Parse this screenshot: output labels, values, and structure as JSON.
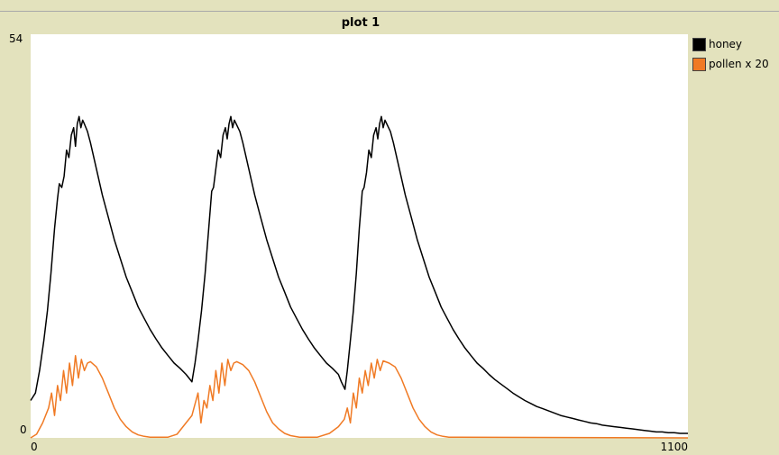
{
  "chart_data": {
    "type": "line",
    "title": "plot 1",
    "xlabel": "",
    "ylabel": "",
    "xlim": [
      0,
      1100
    ],
    "ylim": [
      0,
      54
    ],
    "x_tick_labels": [
      "0",
      "1100"
    ],
    "y_tick_labels": [
      "0",
      "54"
    ],
    "grid": false,
    "legend_position": "right",
    "series": [
      {
        "name": "honey",
        "color": "#000000",
        "points": [
          [
            0,
            5
          ],
          [
            8,
            6
          ],
          [
            15,
            9
          ],
          [
            22,
            13
          ],
          [
            28,
            17
          ],
          [
            34,
            22
          ],
          [
            40,
            28
          ],
          [
            45,
            32
          ],
          [
            48,
            34
          ],
          [
            52,
            33.5
          ],
          [
            56,
            35
          ],
          [
            60,
            38.5
          ],
          [
            64,
            37.5
          ],
          [
            68,
            40.5
          ],
          [
            72,
            41.5
          ],
          [
            75,
            39
          ],
          [
            78,
            42
          ],
          [
            81,
            43
          ],
          [
            84,
            41.5
          ],
          [
            87,
            42.5
          ],
          [
            90,
            42
          ],
          [
            95,
            41
          ],
          [
            100,
            39.5
          ],
          [
            110,
            36
          ],
          [
            120,
            32.5
          ],
          [
            130,
            29.5
          ],
          [
            140,
            26.5
          ],
          [
            150,
            24
          ],
          [
            160,
            21.5
          ],
          [
            170,
            19.5
          ],
          [
            180,
            17.5
          ],
          [
            190,
            16
          ],
          [
            200,
            14.5
          ],
          [
            210,
            13.2
          ],
          [
            220,
            12
          ],
          [
            230,
            11
          ],
          [
            240,
            10
          ],
          [
            250,
            9.3
          ],
          [
            260,
            8.5
          ],
          [
            265,
            8
          ],
          [
            270,
            7.5
          ],
          [
            275,
            10
          ],
          [
            280,
            13
          ],
          [
            286,
            17
          ],
          [
            292,
            22
          ],
          [
            298,
            28
          ],
          [
            303,
            33
          ],
          [
            306,
            33.5
          ],
          [
            310,
            36
          ],
          [
            314,
            38.5
          ],
          [
            318,
            37.5
          ],
          [
            322,
            40.5
          ],
          [
            326,
            41.5
          ],
          [
            329,
            40
          ],
          [
            332,
            42
          ],
          [
            335,
            43
          ],
          [
            338,
            41.5
          ],
          [
            341,
            42.5
          ],
          [
            344,
            42
          ],
          [
            350,
            41
          ],
          [
            355,
            39.5
          ],
          [
            365,
            36
          ],
          [
            375,
            32.5
          ],
          [
            385,
            29.5
          ],
          [
            395,
            26.5
          ],
          [
            405,
            24
          ],
          [
            415,
            21.5
          ],
          [
            425,
            19.5
          ],
          [
            435,
            17.5
          ],
          [
            445,
            16
          ],
          [
            455,
            14.5
          ],
          [
            465,
            13.2
          ],
          [
            475,
            12
          ],
          [
            485,
            11
          ],
          [
            495,
            10
          ],
          [
            505,
            9.3
          ],
          [
            515,
            8.5
          ],
          [
            520,
            7.5
          ],
          [
            526,
            6.5
          ],
          [
            530,
            9
          ],
          [
            535,
            13
          ],
          [
            540,
            17
          ],
          [
            545,
            22
          ],
          [
            550,
            28
          ],
          [
            555,
            33
          ],
          [
            558,
            33.5
          ],
          [
            562,
            35.5
          ],
          [
            566,
            38.5
          ],
          [
            570,
            37.5
          ],
          [
            574,
            40.5
          ],
          [
            578,
            41.5
          ],
          [
            581,
            40
          ],
          [
            584,
            42
          ],
          [
            587,
            43
          ],
          [
            590,
            41.5
          ],
          [
            593,
            42.5
          ],
          [
            596,
            42
          ],
          [
            602,
            41
          ],
          [
            607,
            39.5
          ],
          [
            617,
            36
          ],
          [
            627,
            32.5
          ],
          [
            637,
            29.5
          ],
          [
            647,
            26.5
          ],
          [
            657,
            24
          ],
          [
            667,
            21.5
          ],
          [
            677,
            19.5
          ],
          [
            687,
            17.5
          ],
          [
            697,
            16
          ],
          [
            707,
            14.5
          ],
          [
            717,
            13.2
          ],
          [
            727,
            12
          ],
          [
            737,
            11
          ],
          [
            747,
            10
          ],
          [
            757,
            9.3
          ],
          [
            767,
            8.5
          ],
          [
            777,
            7.8
          ],
          [
            787,
            7.2
          ],
          [
            797,
            6.6
          ],
          [
            807,
            6
          ],
          [
            817,
            5.5
          ],
          [
            827,
            5
          ],
          [
            837,
            4.6
          ],
          [
            847,
            4.2
          ],
          [
            857,
            3.9
          ],
          [
            867,
            3.6
          ],
          [
            877,
            3.3
          ],
          [
            887,
            3
          ],
          [
            897,
            2.8
          ],
          [
            907,
            2.6
          ],
          [
            917,
            2.4
          ],
          [
            927,
            2.2
          ],
          [
            937,
            2
          ],
          [
            947,
            1.9
          ],
          [
            957,
            1.7
          ],
          [
            967,
            1.6
          ],
          [
            977,
            1.5
          ],
          [
            987,
            1.4
          ],
          [
            997,
            1.3
          ],
          [
            1007,
            1.2
          ],
          [
            1017,
            1.1
          ],
          [
            1027,
            1
          ],
          [
            1037,
            0.9
          ],
          [
            1047,
            0.8
          ],
          [
            1057,
            0.8
          ],
          [
            1067,
            0.7
          ],
          [
            1077,
            0.7
          ],
          [
            1087,
            0.6
          ],
          [
            1100,
            0.6
          ]
        ]
      },
      {
        "name": "pollen x 20",
        "color": "#f07a24",
        "points": [
          [
            0,
            0
          ],
          [
            10,
            0.5
          ],
          [
            20,
            2
          ],
          [
            30,
            4
          ],
          [
            35,
            6
          ],
          [
            40,
            3
          ],
          [
            45,
            7
          ],
          [
            50,
            5
          ],
          [
            55,
            9
          ],
          [
            60,
            6
          ],
          [
            65,
            10
          ],
          [
            70,
            7
          ],
          [
            75,
            11
          ],
          [
            80,
            8
          ],
          [
            85,
            10.5
          ],
          [
            90,
            9
          ],
          [
            95,
            10
          ],
          [
            100,
            10.2
          ],
          [
            110,
            9.5
          ],
          [
            120,
            8
          ],
          [
            130,
            6
          ],
          [
            140,
            4
          ],
          [
            150,
            2.5
          ],
          [
            160,
            1.5
          ],
          [
            170,
            0.8
          ],
          [
            180,
            0.4
          ],
          [
            190,
            0.2
          ],
          [
            200,
            0.1
          ],
          [
            230,
            0.1
          ],
          [
            245,
            0.5
          ],
          [
            260,
            2
          ],
          [
            270,
            3
          ],
          [
            280,
            6
          ],
          [
            285,
            2
          ],
          [
            290,
            5
          ],
          [
            295,
            4
          ],
          [
            300,
            7
          ],
          [
            305,
            5
          ],
          [
            310,
            9
          ],
          [
            315,
            6
          ],
          [
            320,
            10
          ],
          [
            325,
            7
          ],
          [
            330,
            10.5
          ],
          [
            335,
            9
          ],
          [
            340,
            10
          ],
          [
            345,
            10.2
          ],
          [
            355,
            9.8
          ],
          [
            365,
            9
          ],
          [
            375,
            7.5
          ],
          [
            385,
            5.5
          ],
          [
            395,
            3.5
          ],
          [
            405,
            2
          ],
          [
            415,
            1.2
          ],
          [
            425,
            0.6
          ],
          [
            435,
            0.3
          ],
          [
            450,
            0.1
          ],
          [
            480,
            0.1
          ],
          [
            500,
            0.6
          ],
          [
            515,
            1.5
          ],
          [
            525,
            2.5
          ],
          [
            530,
            4
          ],
          [
            535,
            2
          ],
          [
            540,
            6
          ],
          [
            545,
            4
          ],
          [
            550,
            8
          ],
          [
            555,
            6
          ],
          [
            560,
            9
          ],
          [
            565,
            7
          ],
          [
            570,
            10
          ],
          [
            575,
            8
          ],
          [
            580,
            10.5
          ],
          [
            585,
            9
          ],
          [
            590,
            10.3
          ],
          [
            600,
            10
          ],
          [
            610,
            9.5
          ],
          [
            620,
            8
          ],
          [
            630,
            6
          ],
          [
            640,
            4
          ],
          [
            650,
            2.5
          ],
          [
            660,
            1.5
          ],
          [
            670,
            0.8
          ],
          [
            680,
            0.4
          ],
          [
            690,
            0.2
          ],
          [
            700,
            0.1
          ],
          [
            1100,
            0
          ]
        ]
      }
    ]
  }
}
